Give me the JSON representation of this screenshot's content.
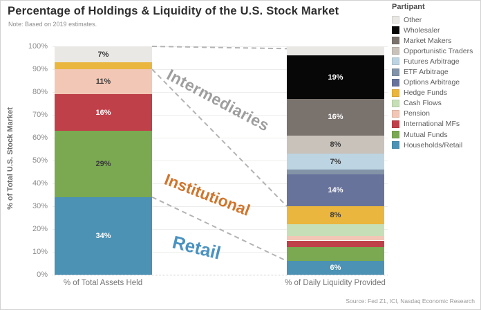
{
  "source": "Source: Fed Z1, ICI, Nasdaq Economic Research",
  "chart_data": {
    "type": "stacked-bar",
    "title": "Percentage of Holdings & Liquidity of the U.S. Stock Market",
    "note": "Note: Based on 2019 estimates.",
    "ylabel": "% of Total U.S. Stock Market",
    "ylim": [
      0,
      100
    ],
    "ytick_step": 10,
    "ytick_suffix": "%",
    "grid": true,
    "legend_title": "Partipant",
    "legend_position": "right",
    "participants": [
      {
        "name": "Other",
        "color": "#e9e8e5"
      },
      {
        "name": "Wholesaler",
        "color": "#070707"
      },
      {
        "name": "Market Makers",
        "color": "#7a726d"
      },
      {
        "name": "Opportunistic Traders",
        "color": "#c9c2ba"
      },
      {
        "name": "Futures Arbitrage",
        "color": "#bdd4e2"
      },
      {
        "name": "ETF Arbitrage",
        "color": "#8394a8"
      },
      {
        "name": "Options Arbitrage",
        "color": "#68739b"
      },
      {
        "name": "Hedge Funds",
        "color": "#eab63e"
      },
      {
        "name": "Cash Flows",
        "color": "#c7dfb6"
      },
      {
        "name": "Pension",
        "color": "#f3c7b5"
      },
      {
        "name": "International MFs",
        "color": "#c04049"
      },
      {
        "name": "Mutual Funds",
        "color": "#7aa951"
      },
      {
        "name": "Households/Retail",
        "color": "#4b92b4"
      }
    ],
    "bars": [
      {
        "category": "% of Total Assets Held",
        "segments": [
          {
            "participant": "Other",
            "value": 7,
            "label": "7%",
            "label_style": "dark"
          },
          {
            "participant": "Hedge Funds",
            "value": 3,
            "label": "",
            "label_style": ""
          },
          {
            "participant": "Pension",
            "value": 11,
            "label": "11%",
            "label_style": "dark"
          },
          {
            "participant": "International MFs",
            "value": 16,
            "label": "16%",
            "label_style": "light"
          },
          {
            "participant": "Mutual Funds",
            "value": 29,
            "label": "29%",
            "label_style": "dark"
          },
          {
            "participant": "Households/Retail",
            "value": 34,
            "label": "34%",
            "label_style": "light"
          }
        ]
      },
      {
        "category": "% of Daily Liquidity Provided",
        "segments": [
          {
            "participant": "Other",
            "value": 4,
            "label": "",
            "label_style": ""
          },
          {
            "participant": "Wholesaler",
            "value": 19,
            "label": "19%",
            "label_style": "light"
          },
          {
            "participant": "Market Makers",
            "value": 16,
            "label": "16%",
            "label_style": "light"
          },
          {
            "participant": "Opportunistic Traders",
            "value": 8,
            "label": "8%",
            "label_style": "dark"
          },
          {
            "participant": "Futures Arbitrage",
            "value": 7,
            "label": "7%",
            "label_style": "dark"
          },
          {
            "participant": "ETF Arbitrage",
            "value": 2,
            "label": "",
            "label_style": ""
          },
          {
            "participant": "Options Arbitrage",
            "value": 14,
            "label": "14%",
            "label_style": "light"
          },
          {
            "participant": "Hedge Funds",
            "value": 8,
            "label": "8%",
            "label_style": "dark"
          },
          {
            "participant": "Cash Flows",
            "value": 5,
            "label": "",
            "label_style": ""
          },
          {
            "participant": "Pension",
            "value": 2,
            "label": "",
            "label_style": ""
          },
          {
            "participant": "International MFs",
            "value": 3,
            "label": "",
            "label_style": ""
          },
          {
            "participant": "Mutual Funds",
            "value": 6,
            "label": "",
            "label_style": ""
          },
          {
            "participant": "Households/Retail",
            "value": 6,
            "label": "6%",
            "label_style": "light"
          }
        ]
      }
    ],
    "annotations": [
      {
        "id": "intermediaries",
        "label": "Intermediaries",
        "color": "#9e9e9e"
      },
      {
        "id": "institutional",
        "label": "Institutional",
        "color": "#d0752c"
      },
      {
        "id": "retail",
        "label": "Retail",
        "color": "#4a92c0"
      }
    ],
    "connector_lines": [
      {
        "from_pct": 100,
        "to_pct": 99
      },
      {
        "from_pct": 90,
        "to_pct": 30
      },
      {
        "from_pct": 34,
        "to_pct": 6
      }
    ],
    "connector_color": "#b3b3b3"
  }
}
